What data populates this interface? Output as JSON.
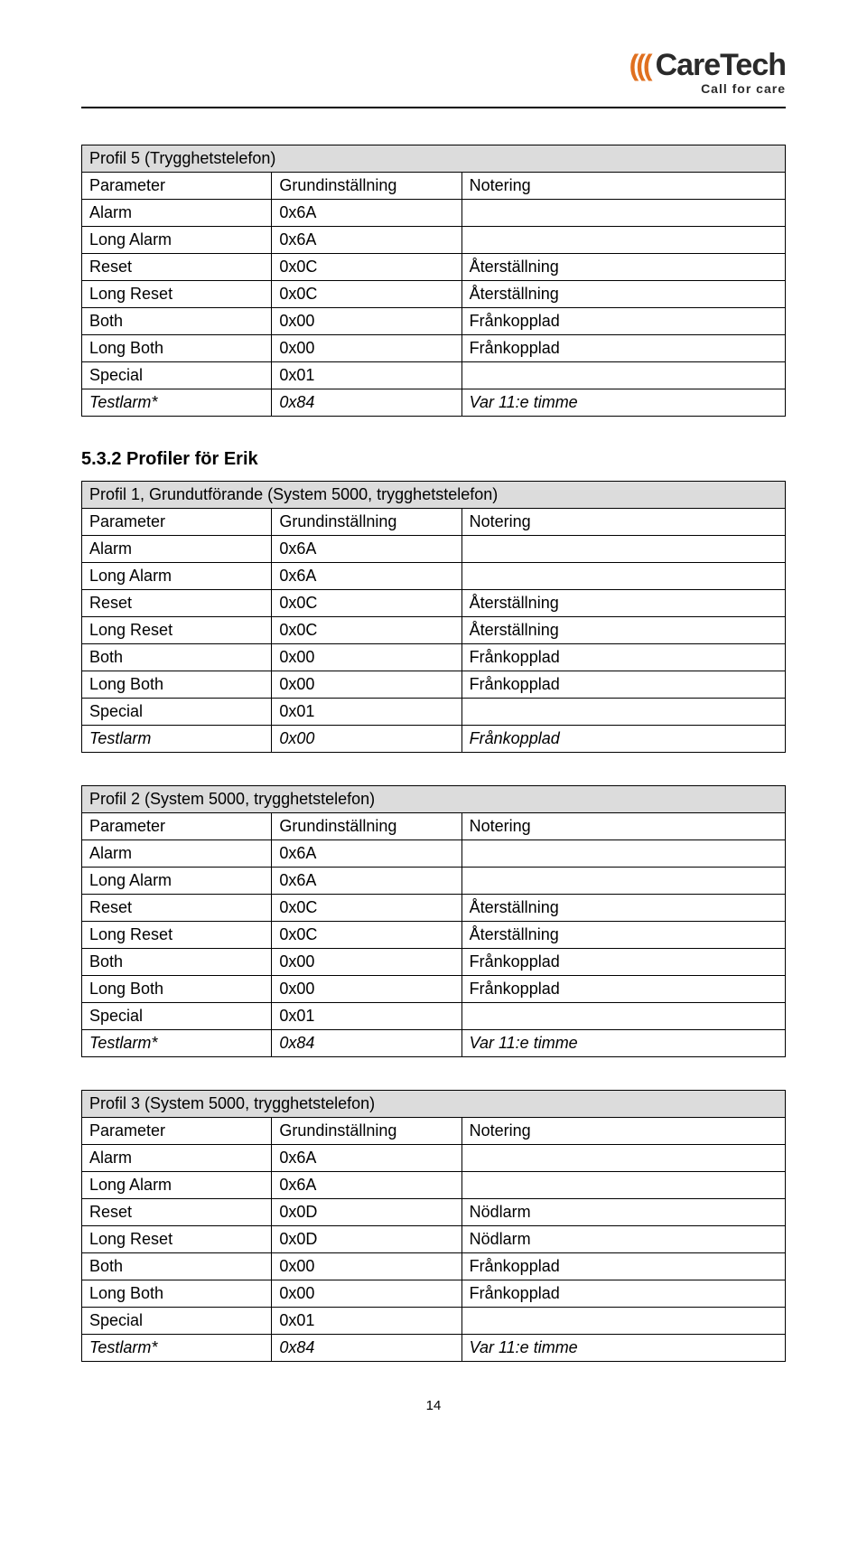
{
  "logo": {
    "brand": "CareTech",
    "tagline": "Call for care"
  },
  "tables": [
    {
      "title": "Profil 5 (Trygghetstelefon)",
      "title_shaded": true,
      "header": [
        "Parameter",
        "Grundinställning",
        "Notering"
      ],
      "rows": [
        {
          "p": "Alarm",
          "v": "0x6A",
          "n": "",
          "i": false
        },
        {
          "p": "Long Alarm",
          "v": "0x6A",
          "n": "",
          "i": false
        },
        {
          "p": "Reset",
          "v": "0x0C",
          "n": "Återställning",
          "i": false
        },
        {
          "p": "Long Reset",
          "v": "0x0C",
          "n": "Återställning",
          "i": false
        },
        {
          "p": "Both",
          "v": "0x00",
          "n": "Frånkopplad",
          "i": false
        },
        {
          "p": "Long Both",
          "v": "0x00",
          "n": "Frånkopplad",
          "i": false
        },
        {
          "p": "Special",
          "v": "0x01",
          "n": "",
          "i": false
        },
        {
          "p": "Testlarm*",
          "v": "0x84",
          "n": "Var 11:e timme",
          "i": true
        }
      ]
    },
    {
      "pre_heading": "5.3.2 Profiler för Erik",
      "title": "Profil 1, Grundutförande (System 5000, trygghetstelefon)",
      "title_shaded": true,
      "header": [
        "Parameter",
        "Grundinställning",
        "Notering"
      ],
      "rows": [
        {
          "p": "Alarm",
          "v": "0x6A",
          "n": "",
          "i": false
        },
        {
          "p": "Long Alarm",
          "v": "0x6A",
          "n": "",
          "i": false
        },
        {
          "p": "Reset",
          "v": "0x0C",
          "n": "Återställning",
          "i": false
        },
        {
          "p": "Long Reset",
          "v": "0x0C",
          "n": "Återställning",
          "i": false
        },
        {
          "p": "Both",
          "v": "0x00",
          "n": "Frånkopplad",
          "i": false
        },
        {
          "p": "Long Both",
          "v": "0x00",
          "n": "Frånkopplad",
          "i": false
        },
        {
          "p": "Special",
          "v": "0x01",
          "n": "",
          "i": false
        },
        {
          "p": "Testlarm",
          "v": "0x00",
          "n": "Frånkopplad",
          "i": true
        }
      ]
    },
    {
      "title": "Profil 2 (System 5000, trygghetstelefon)",
      "title_shaded": true,
      "header": [
        "Parameter",
        "Grundinställning",
        "Notering"
      ],
      "rows": [
        {
          "p": "Alarm",
          "v": "0x6A",
          "n": "",
          "i": false
        },
        {
          "p": "Long Alarm",
          "v": "0x6A",
          "n": "",
          "i": false
        },
        {
          "p": "Reset",
          "v": "0x0C",
          "n": "Återställning",
          "i": false
        },
        {
          "p": "Long Reset",
          "v": "0x0C",
          "n": "Återställning",
          "i": false
        },
        {
          "p": "Both",
          "v": "0x00",
          "n": "Frånkopplad",
          "i": false
        },
        {
          "p": "Long Both",
          "v": "0x00",
          "n": "Frånkopplad",
          "i": false
        },
        {
          "p": "Special",
          "v": "0x01",
          "n": "",
          "i": false
        },
        {
          "p": "Testlarm*",
          "v": "0x84",
          "n": "Var 11:e timme",
          "i": true
        }
      ]
    },
    {
      "title": "Profil 3 (System 5000, trygghetstelefon)",
      "title_shaded": true,
      "header": [
        "Parameter",
        "Grundinställning",
        "Notering"
      ],
      "rows": [
        {
          "p": "Alarm",
          "v": "0x6A",
          "n": "",
          "i": false
        },
        {
          "p": "Long Alarm",
          "v": "0x6A",
          "n": "",
          "i": false
        },
        {
          "p": "Reset",
          "v": "0x0D",
          "n": "Nödlarm",
          "i": false
        },
        {
          "p": "Long Reset",
          "v": "0x0D",
          "n": "Nödlarm",
          "i": false
        },
        {
          "p": "Both",
          "v": "0x00",
          "n": "Frånkopplad",
          "i": false
        },
        {
          "p": "Long Both",
          "v": "0x00",
          "n": "Frånkopplad",
          "i": false
        },
        {
          "p": "Special",
          "v": "0x01",
          "n": "",
          "i": false
        },
        {
          "p": "Testlarm*",
          "v": "0x84",
          "n": "Var 11:e timme",
          "i": true
        }
      ]
    }
  ],
  "page_number": "14"
}
